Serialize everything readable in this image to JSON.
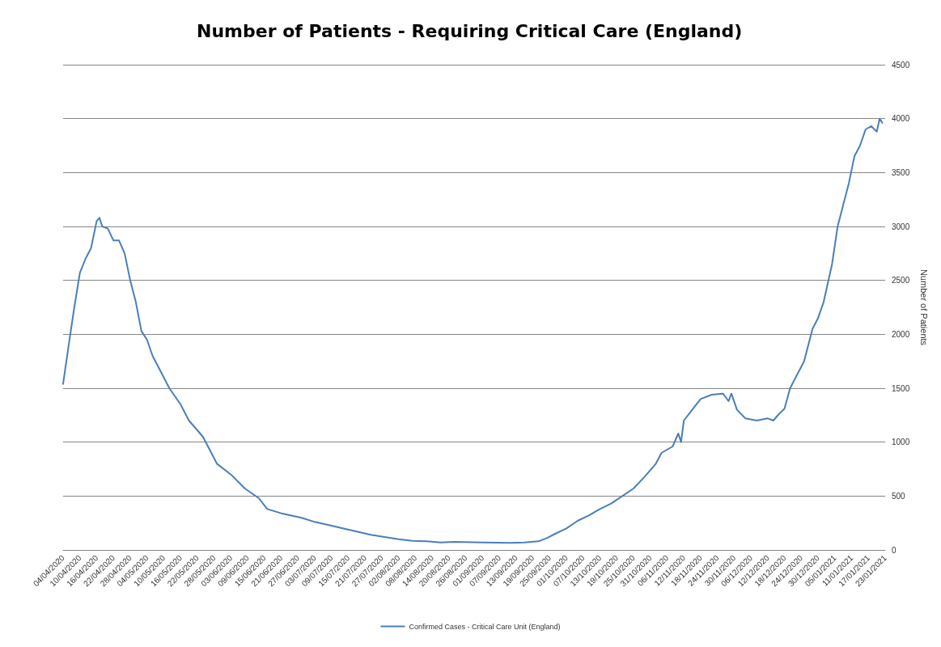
{
  "chart_data": {
    "type": "line",
    "title": "Number of Patients - Requiring Critical Care (England)",
    "ylabel": "Number of Patients",
    "x": [
      "2020-04-04",
      "2020-04-06",
      "2020-04-08",
      "2020-04-10",
      "2020-04-12",
      "2020-04-14",
      "2020-04-16",
      "2020-04-17",
      "2020-04-18",
      "2020-04-20",
      "2020-04-22",
      "2020-04-24",
      "2020-04-26",
      "2020-04-28",
      "2020-04-30",
      "2020-05-02",
      "2020-05-04",
      "2020-05-06",
      "2020-05-09",
      "2020-05-12",
      "2020-05-16",
      "2020-05-19",
      "2020-05-24",
      "2020-05-26",
      "2020-05-29",
      "2020-06-03",
      "2020-06-08",
      "2020-06-13",
      "2020-06-16",
      "2020-06-21",
      "2020-06-28",
      "2020-07-03",
      "2020-07-08",
      "2020-07-13",
      "2020-07-18",
      "2020-07-23",
      "2020-07-28",
      "2020-08-02",
      "2020-08-07",
      "2020-08-12",
      "2020-08-17",
      "2020-08-22",
      "2020-09-01",
      "2020-09-11",
      "2020-09-16",
      "2020-09-21",
      "2020-09-24",
      "2020-09-27",
      "2020-10-01",
      "2020-10-05",
      "2020-10-09",
      "2020-10-13",
      "2020-10-17",
      "2020-10-21",
      "2020-10-25",
      "2020-10-29",
      "2020-11-02",
      "2020-11-04",
      "2020-11-08",
      "2020-11-10",
      "2020-11-11",
      "2020-11-12",
      "2020-11-15",
      "2020-11-18",
      "2020-11-22",
      "2020-11-26",
      "2020-11-28",
      "2020-11-29",
      "2020-12-01",
      "2020-12-04",
      "2020-12-08",
      "2020-12-12",
      "2020-12-14",
      "2020-12-16",
      "2020-12-18",
      "2020-12-20",
      "2020-12-25",
      "2020-12-28",
      "2020-12-30",
      "2021-01-01",
      "2021-01-04",
      "2021-01-06",
      "2021-01-08",
      "2021-01-10",
      "2021-01-12",
      "2021-01-14",
      "2021-01-16",
      "2021-01-18",
      "2021-01-20",
      "2021-01-21",
      "2021-01-22"
    ],
    "series": [
      {
        "name": "Confirmed Cases - Critical Care Unit (England)",
        "color": "#4a7ebb",
        "values": [
          1540,
          1900,
          2250,
          2570,
          2700,
          2800,
          3050,
          3080,
          3000,
          2980,
          2870,
          2870,
          2750,
          2500,
          2300,
          2030,
          1950,
          1800,
          1650,
          1500,
          1350,
          1200,
          1050,
          950,
          800,
          700,
          570,
          480,
          380,
          340,
          300,
          260,
          230,
          200,
          170,
          140,
          120,
          100,
          85,
          80,
          70,
          75,
          70,
          65,
          70,
          80,
          110,
          150,
          200,
          270,
          320,
          380,
          430,
          500,
          570,
          680,
          800,
          900,
          960,
          1080,
          1000,
          1200,
          1300,
          1400,
          1440,
          1450,
          1380,
          1450,
          1300,
          1220,
          1200,
          1220,
          1200,
          1260,
          1310,
          1500,
          1750,
          2050,
          2150,
          2300,
          2650,
          3000,
          3200,
          3400,
          3650,
          3750,
          3900,
          3930,
          3880,
          4000,
          3960
        ]
      }
    ],
    "xlim": [
      "2020-04-04",
      "2021-01-23"
    ],
    "xticks": [
      {
        "value": "2020-04-04",
        "label": "04/04/2020"
      },
      {
        "value": "2020-04-10",
        "label": "10/04/2020"
      },
      {
        "value": "2020-04-16",
        "label": "16/04/2020"
      },
      {
        "value": "2020-04-22",
        "label": "22/04/2020"
      },
      {
        "value": "2020-04-28",
        "label": "28/04/2020"
      },
      {
        "value": "2020-05-04",
        "label": "04/05/2020"
      },
      {
        "value": "2020-05-10",
        "label": "10/05/2020"
      },
      {
        "value": "2020-05-16",
        "label": "16/05/2020"
      },
      {
        "value": "2020-05-22",
        "label": "22/05/2020"
      },
      {
        "value": "2020-05-28",
        "label": "28/05/2020"
      },
      {
        "value": "2020-06-03",
        "label": "03/06/2020"
      },
      {
        "value": "2020-06-09",
        "label": "09/06/2020"
      },
      {
        "value": "2020-06-15",
        "label": "15/06/2020"
      },
      {
        "value": "2020-06-21",
        "label": "21/06/2020"
      },
      {
        "value": "2020-06-27",
        "label": "27/06/2020"
      },
      {
        "value": "2020-07-03",
        "label": "03/07/2020"
      },
      {
        "value": "2020-07-09",
        "label": "09/07/2020"
      },
      {
        "value": "2020-07-15",
        "label": "15/07/2020"
      },
      {
        "value": "2020-07-21",
        "label": "21/07/2020"
      },
      {
        "value": "2020-07-27",
        "label": "27/07/2020"
      },
      {
        "value": "2020-08-02",
        "label": "02/08/2020"
      },
      {
        "value": "2020-08-08",
        "label": "08/08/2020"
      },
      {
        "value": "2020-08-14",
        "label": "14/08/2020"
      },
      {
        "value": "2020-08-20",
        "label": "20/08/2020"
      },
      {
        "value": "2020-08-26",
        "label": "26/08/2020"
      },
      {
        "value": "2020-09-01",
        "label": "01/09/2020"
      },
      {
        "value": "2020-09-07",
        "label": "07/09/2020"
      },
      {
        "value": "2020-09-13",
        "label": "13/09/2020"
      },
      {
        "value": "2020-09-19",
        "label": "19/09/2020"
      },
      {
        "value": "2020-09-25",
        "label": "25/09/2020"
      },
      {
        "value": "2020-10-01",
        "label": "01/10/2020"
      },
      {
        "value": "2020-10-07",
        "label": "07/10/2020"
      },
      {
        "value": "2020-10-13",
        "label": "13/10/2020"
      },
      {
        "value": "2020-10-19",
        "label": "19/10/2020"
      },
      {
        "value": "2020-10-25",
        "label": "25/10/2020"
      },
      {
        "value": "2020-10-31",
        "label": "31/10/2020"
      },
      {
        "value": "2020-11-06",
        "label": "06/11/2020"
      },
      {
        "value": "2020-11-12",
        "label": "12/11/2020"
      },
      {
        "value": "2020-11-18",
        "label": "18/11/2020"
      },
      {
        "value": "2020-11-24",
        "label": "24/11/2020"
      },
      {
        "value": "2020-11-30",
        "label": "30/11/2020"
      },
      {
        "value": "2020-12-06",
        "label": "06/12/2020"
      },
      {
        "value": "2020-12-12",
        "label": "12/12/2020"
      },
      {
        "value": "2020-12-18",
        "label": "18/12/2020"
      },
      {
        "value": "2020-12-24",
        "label": "24/12/2020"
      },
      {
        "value": "2020-12-30",
        "label": "30/12/2020"
      },
      {
        "value": "2021-01-05",
        "label": "05/01/2021"
      },
      {
        "value": "2021-01-11",
        "label": "11/01/2021"
      },
      {
        "value": "2021-01-17",
        "label": "17/01/2021"
      },
      {
        "value": "2021-01-23",
        "label": "23/01/2021"
      }
    ],
    "ylim": [
      0,
      4500
    ],
    "yticks": [
      0,
      500,
      1000,
      1500,
      2000,
      2500,
      3000,
      3500,
      4000,
      4500
    ],
    "grid": "y",
    "legend": "bottom",
    "marker": "none",
    "line_style": "solid"
  }
}
